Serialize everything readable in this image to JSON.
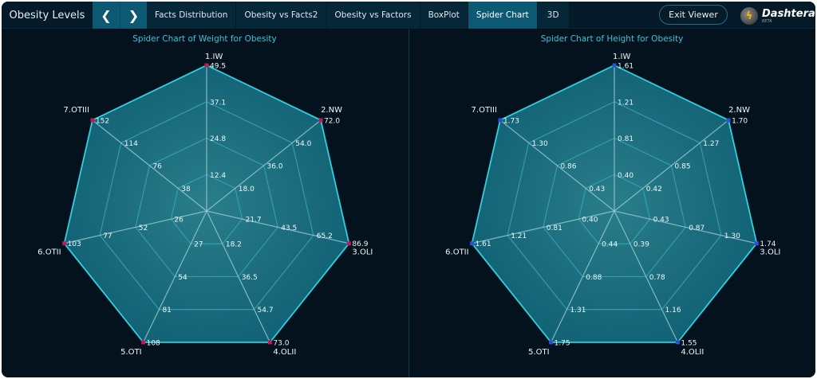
{
  "header": {
    "app_title": "Obesity Levels",
    "prev_icon": "chevron-left-icon",
    "next_icon": "chevron-right-icon",
    "prev_glyph": "❮",
    "next_glyph": "❯",
    "tabs": [
      {
        "label": "Facts Distribution",
        "active": false
      },
      {
        "label": "Obesity vs Facts2",
        "active": false
      },
      {
        "label": "Obesity vs Factors",
        "active": false
      },
      {
        "label": "BoxPlot",
        "active": false
      },
      {
        "label": "Spider Chart",
        "active": true
      },
      {
        "label": "3D",
        "active": false
      }
    ],
    "exit_label": "Exit Viewer",
    "logo": {
      "name": "Dashtera",
      "tm": "™",
      "beta": "BETA",
      "glyph": "ϟ"
    }
  },
  "colors": {
    "accent": "#0d5872",
    "outline": "#2fd0e0",
    "fill": "#136a7c",
    "grid": "#3aa8b8",
    "axis": "#9ccdd6",
    "title": "#3cc3d6",
    "weight_marker": "#c2185b",
    "height_marker": "#2e4fd6"
  },
  "chart_data": [
    {
      "type": "radar",
      "title": "Spider Chart of Weight for Obesity",
      "categories": [
        "1.IW",
        "2.NW",
        "3.OLI",
        "4.OLII",
        "5.OTI",
        "6.OTII",
        "7.OTIII"
      ],
      "values": [
        49.5,
        72.0,
        86.9,
        73.0,
        108,
        103,
        152
      ],
      "ring_labels": [
        [
          "12.4",
          "24.8",
          "37.1",
          "49.5"
        ],
        [
          "18.0",
          "36.0",
          "54.0",
          "72.0"
        ],
        [
          "21.7",
          "43.5",
          "65.2",
          "86.9"
        ],
        [
          "18.2",
          "36.5",
          "54.7",
          "73.0"
        ],
        [
          "27",
          "54",
          "81",
          "108"
        ],
        [
          "26",
          "52",
          "77",
          "103"
        ],
        [
          "38",
          "76",
          "114",
          "152"
        ]
      ],
      "rings": 4,
      "marker_color": "#c2185b"
    },
    {
      "type": "radar",
      "title": "Spider Chart of Height for Obesity",
      "categories": [
        "1.IW",
        "2.NW",
        "3.OLI",
        "4.OLII",
        "5.OTI",
        "6.OTII",
        "7.OTIII"
      ],
      "values": [
        1.61,
        1.7,
        1.74,
        1.55,
        1.75,
        1.61,
        1.73
      ],
      "ring_labels": [
        [
          "0.40",
          "0.81",
          "1.21",
          "1.61"
        ],
        [
          "0.42",
          "0.85",
          "1.27",
          "1.70"
        ],
        [
          "0.43",
          "0.87",
          "1.30",
          "1.74"
        ],
        [
          "0.39",
          "0.78",
          "1.16",
          "1.55"
        ],
        [
          "0.44",
          "0.88",
          "1.31",
          "1.75"
        ],
        [
          "0.40",
          "0.81",
          "1.21",
          "1.61"
        ],
        [
          "0.43",
          "0.86",
          "1.30",
          "1.73"
        ]
      ],
      "rings": 4,
      "marker_color": "#2e4fd6"
    }
  ]
}
